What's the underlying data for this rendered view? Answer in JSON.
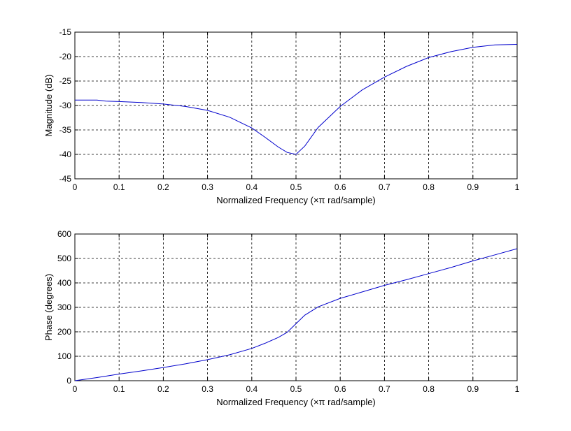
{
  "chart_data": [
    {
      "type": "line",
      "xlabel": "Normalized Frequency  (×π rad/sample)",
      "ylabel": "Magnitude (dB)",
      "xlim": [
        0,
        1
      ],
      "ylim": [
        -45,
        -15
      ],
      "xticks": [
        0,
        0.1,
        0.2,
        0.3,
        0.4,
        0.5,
        0.6,
        0.7,
        0.8,
        0.9,
        1
      ],
      "yticks": [
        -45,
        -40,
        -35,
        -30,
        -25,
        -20,
        -15
      ],
      "xtick_labels": [
        "0",
        "0.1",
        "0.2",
        "0.3",
        "0.4",
        "0.5",
        "0.6",
        "0.7",
        "0.8",
        "0.9",
        "1"
      ],
      "ytick_labels": [
        "-45",
        "-40",
        "-35",
        "-30",
        "-25",
        "-20",
        "-15"
      ],
      "grid": true,
      "color": "#0000cc",
      "series": [
        {
          "x": [
            0,
            0.05,
            0.07,
            0.1,
            0.15,
            0.2,
            0.25,
            0.3,
            0.35,
            0.4,
            0.43,
            0.46,
            0.48,
            0.5,
            0.52,
            0.55,
            0.6,
            0.65,
            0.7,
            0.75,
            0.8,
            0.85,
            0.9,
            0.95,
            1.0
          ],
          "y": [
            -28.9,
            -28.9,
            -29.1,
            -29.2,
            -29.4,
            -29.7,
            -30.2,
            -31.0,
            -32.4,
            -34.6,
            -36.5,
            -38.5,
            -39.6,
            -40.0,
            -38.3,
            -34.5,
            -30.2,
            -26.8,
            -24.2,
            -22.0,
            -20.2,
            -19.0,
            -18.1,
            -17.6,
            -17.5
          ]
        }
      ]
    },
    {
      "type": "line",
      "xlabel": "Normalized Frequency  (×π rad/sample)",
      "ylabel": "Phase (degrees)",
      "xlim": [
        0,
        1
      ],
      "ylim": [
        0,
        600
      ],
      "xticks": [
        0,
        0.1,
        0.2,
        0.3,
        0.4,
        0.5,
        0.6,
        0.7,
        0.8,
        0.9,
        1
      ],
      "yticks": [
        0,
        100,
        200,
        300,
        400,
        500,
        600
      ],
      "xtick_labels": [
        "0",
        "0.1",
        "0.2",
        "0.3",
        "0.4",
        "0.5",
        "0.6",
        "0.7",
        "0.8",
        "0.9",
        "1"
      ],
      "ytick_labels": [
        "0",
        "100",
        "200",
        "300",
        "400",
        "500",
        "600"
      ],
      "grid": true,
      "color": "#0000cc",
      "series": [
        {
          "x": [
            0,
            0.05,
            0.1,
            0.15,
            0.2,
            0.25,
            0.3,
            0.35,
            0.4,
            0.43,
            0.46,
            0.48,
            0.5,
            0.52,
            0.55,
            0.6,
            0.65,
            0.7,
            0.75,
            0.8,
            0.85,
            0.9,
            0.95,
            1.0
          ],
          "y": [
            0,
            13,
            27,
            40,
            54,
            69,
            86,
            106,
            132,
            153,
            177,
            198,
            233,
            268,
            302,
            337,
            363,
            390,
            413,
            438,
            463,
            490,
            515,
            540
          ]
        }
      ]
    }
  ]
}
